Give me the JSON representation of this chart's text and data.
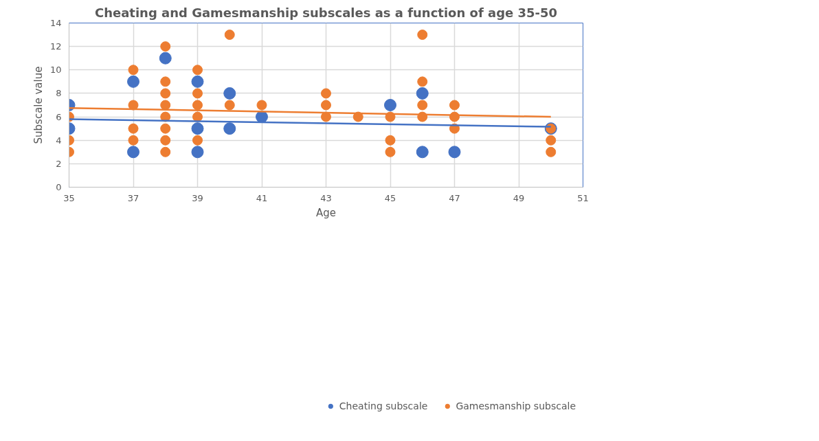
{
  "chart_data": {
    "type": "scatter",
    "title": "Cheating and Gamesmanship subscales as a function of age 35-50",
    "xlabel": "Age",
    "ylabel": "Subscale value",
    "xlim": [
      35,
      51
    ],
    "xticks": [
      35,
      37,
      39,
      41,
      43,
      45,
      47,
      49,
      51
    ],
    "ylim": [
      0,
      14
    ],
    "yticks": [
      0,
      2,
      4,
      6,
      8,
      10,
      12,
      14
    ],
    "grid": true,
    "legend": "bottom",
    "marker": "circle",
    "series": [
      {
        "name": "Cheating subscale",
        "color": "#4472c4",
        "x": [
          35,
          35,
          37,
          37,
          38,
          39,
          39,
          39,
          40,
          40,
          41,
          45,
          46,
          46,
          47,
          50
        ],
        "values": [
          7,
          5,
          9,
          3,
          11,
          9,
          5,
          3,
          8,
          5,
          6,
          7,
          8,
          3,
          3,
          5
        ]
      },
      {
        "name": "Gamesmanship subscale",
        "color": "#ed7d31",
        "x": [
          35,
          35,
          35,
          37,
          37,
          37,
          37,
          38,
          38,
          38,
          38,
          38,
          38,
          38,
          38,
          39,
          39,
          39,
          39,
          39,
          40,
          40,
          41,
          43,
          43,
          43,
          44,
          45,
          45,
          45,
          46,
          46,
          46,
          46,
          47,
          47,
          47,
          50,
          50,
          50
        ],
        "values": [
          6,
          4,
          3,
          10,
          7,
          5,
          4,
          12,
          9,
          8,
          7,
          6,
          5,
          4,
          3,
          10,
          8,
          7,
          6,
          4,
          13,
          7,
          7,
          8,
          7,
          6,
          6,
          6,
          4,
          3,
          13,
          9,
          7,
          6,
          7,
          6,
          5,
          5,
          4,
          3
        ]
      },
      {
        "type": "line",
        "marker": "none",
        "color": "#4472c4",
        "x": [
          35,
          50
        ],
        "values": [
          5.8,
          5.15
        ]
      },
      {
        "type": "line",
        "marker": "none",
        "color": "#ed7d31",
        "x": [
          35,
          50
        ],
        "values": [
          6.75,
          6.0
        ]
      }
    ]
  }
}
